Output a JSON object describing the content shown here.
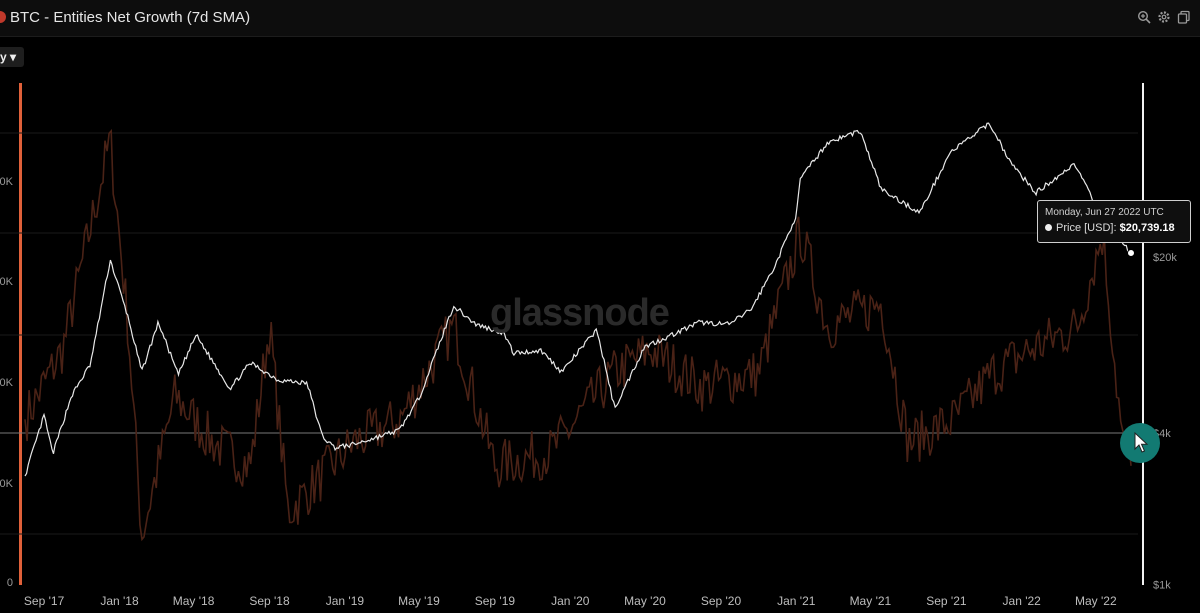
{
  "header": {
    "title": "BTC - Entities Net Growth (7d SMA)",
    "dropdown_label": "y ▾"
  },
  "toolbar_icons": [
    "zoom-icon",
    "gear-icon",
    "copy-icon"
  ],
  "watermark": "glassnode",
  "tooltip": {
    "date": "Monday, Jun 27 2022 UTC",
    "series": "Price [USD]:",
    "value": "$20,739.18"
  },
  "chart_data": {
    "type": "line",
    "title": "BTC - Entities Net Growth (7d SMA)",
    "x_ticks": [
      "Sep '17",
      "Jan '18",
      "May '18",
      "Sep '18",
      "Jan '19",
      "May '19",
      "Sep '19",
      "Jan '20",
      "May '20",
      "Sep '20",
      "Jan '21",
      "May '21",
      "Sep '21",
      "Jan '22",
      "May '22"
    ],
    "left_axis_ticks": [
      "0",
      "0K",
      "0K",
      "0K",
      "0K"
    ],
    "right_axis": {
      "scale": "log",
      "ticks": [
        "$20k",
        "$4k",
        "$1k"
      ]
    },
    "colors": {
      "price": "#e8e8e8",
      "entities": "#4a2216",
      "accent": "#e0613a",
      "cursor": "#127a72"
    },
    "series": [
      {
        "name": "Price [USD]",
        "x": [
          "2017-08-01",
          "2017-09-01",
          "2017-09-15",
          "2017-10-15",
          "2017-11-15",
          "2017-12-17",
          "2018-01-15",
          "2018-02-06",
          "2018-03-05",
          "2018-04-06",
          "2018-05-05",
          "2018-06-29",
          "2018-08-01",
          "2018-09-15",
          "2018-11-01",
          "2018-11-25",
          "2018-12-15",
          "2019-01-15",
          "2019-02-15",
          "2019-03-30",
          "2019-05-01",
          "2019-06-26",
          "2019-08-01",
          "2019-09-15",
          "2019-10-01",
          "2019-11-15",
          "2019-12-18",
          "2020-02-13",
          "2020-03-13",
          "2020-04-30",
          "2020-06-01",
          "2020-07-28",
          "2020-09-15",
          "2020-10-21",
          "2020-11-30",
          "2020-12-31",
          "2021-01-08",
          "2021-02-21",
          "2021-04-14",
          "2021-05-19",
          "2021-07-20",
          "2021-09-07",
          "2021-11-10",
          "2021-12-15",
          "2022-01-24",
          "2022-03-28",
          "2022-05-12",
          "2022-06-27"
        ],
        "y": [
          2700,
          4700,
          3300,
          5600,
          7500,
          19500,
          11500,
          7000,
          11000,
          6800,
          9800,
          6000,
          7600,
          6500,
          6300,
          3900,
          3500,
          3600,
          3800,
          4100,
          5500,
          12800,
          10800,
          10000,
          8300,
          8500,
          7000,
          10300,
          5000,
          8800,
          9500,
          11000,
          10800,
          12500,
          19000,
          29000,
          41000,
          57000,
          63500,
          37000,
          30000,
          52000,
          68000,
          47000,
          36000,
          47000,
          28000,
          20739.18
        ]
      },
      {
        "name": "Entities Net Growth (7d SMA)",
        "x": [
          "2017-08-01",
          "2017-10-01",
          "2017-12-17",
          "2018-01-15",
          "2018-02-06",
          "2018-04-01",
          "2018-06-01",
          "2018-08-01",
          "2018-09-01",
          "2018-10-01",
          "2019-01-15",
          "2019-04-01",
          "2019-06-26",
          "2019-09-01",
          "2019-12-01",
          "2020-03-13",
          "2020-05-11",
          "2020-08-01",
          "2020-11-01",
          "2021-01-08",
          "2021-02-21",
          "2021-05-19",
          "2021-07-01",
          "2021-09-15",
          "2021-11-15",
          "2022-01-15",
          "2022-04-01",
          "2022-05-12",
          "2022-06-13",
          "2022-06-27"
        ],
        "y": [
          0.35,
          0.5,
          0.95,
          0.55,
          0.1,
          0.4,
          0.3,
          0.25,
          0.55,
          0.15,
          0.3,
          0.35,
          0.55,
          0.25,
          0.28,
          0.45,
          0.5,
          0.42,
          0.45,
          0.75,
          0.55,
          0.6,
          0.3,
          0.35,
          0.45,
          0.5,
          0.55,
          0.75,
          0.3,
          0.25
        ]
      }
    ]
  }
}
